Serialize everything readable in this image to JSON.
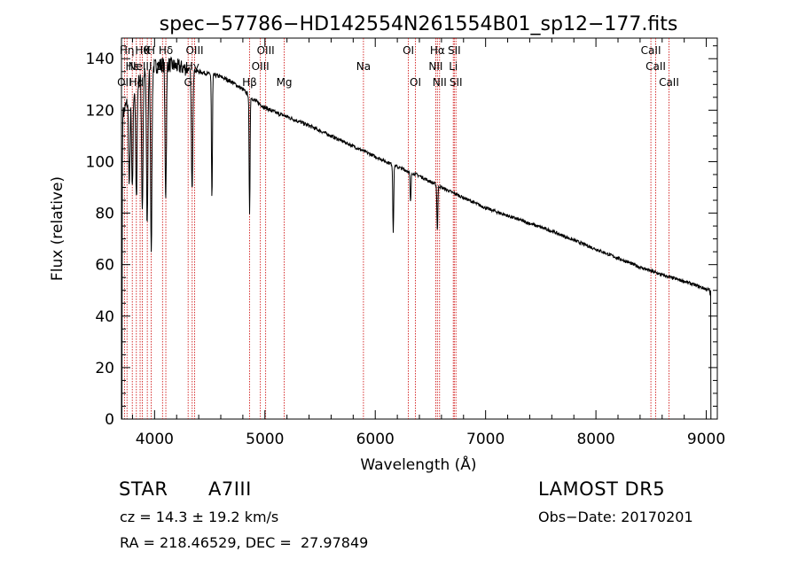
{
  "chart_data": {
    "type": "line",
    "title": "spec−57786−HD142554N261554B01_sp12−177.fits",
    "xlabel": "Wavelength (Å)",
    "ylabel": "Flux (relative)",
    "xlim": [
      3700,
      9100
    ],
    "ylim": [
      0,
      148
    ],
    "xticks": [
      4000,
      5000,
      6000,
      7000,
      8000,
      9000
    ],
    "yticks": [
      0,
      20,
      40,
      60,
      80,
      100,
      120,
      140
    ],
    "grid": false,
    "line_color": "#000000",
    "marker_color": "#cc0000",
    "series": [
      {
        "continuum": [
          [
            3710,
            118
          ],
          [
            3760,
            124
          ],
          [
            3800,
            128
          ],
          [
            3850,
            131
          ],
          [
            3900,
            134
          ],
          [
            3950,
            136
          ],
          [
            4000,
            137
          ],
          [
            4100,
            138
          ],
          [
            4200,
            137
          ],
          [
            4300,
            136
          ],
          [
            4400,
            135
          ],
          [
            4500,
            134
          ],
          [
            4600,
            133
          ],
          [
            4700,
            131
          ],
          [
            4800,
            128
          ],
          [
            4900,
            124
          ],
          [
            5000,
            121
          ],
          [
            5100,
            119
          ],
          [
            5200,
            117.5
          ],
          [
            5400,
            114
          ],
          [
            5600,
            110
          ],
          [
            5800,
            106
          ],
          [
            6000,
            102
          ],
          [
            6200,
            98
          ],
          [
            6400,
            94.5
          ],
          [
            6600,
            90
          ],
          [
            6800,
            86
          ],
          [
            7000,
            82
          ],
          [
            7200,
            79
          ],
          [
            7400,
            76
          ],
          [
            7600,
            73
          ],
          [
            7800,
            69.5
          ],
          [
            8000,
            66
          ],
          [
            8200,
            62.5
          ],
          [
            8400,
            59
          ],
          [
            8600,
            56
          ],
          [
            8800,
            53.5
          ],
          [
            9000,
            50.5
          ],
          [
            9040,
            50
          ]
        ],
        "absorption_lines": [
          [
            3771,
            90
          ],
          [
            3798,
            88
          ],
          [
            3835,
            85
          ],
          [
            3889,
            82
          ],
          [
            3933,
            75
          ],
          [
            3970,
            67
          ],
          [
            4101,
            87
          ],
          [
            4340,
            89
          ],
          [
            4861,
            80
          ],
          [
            4520,
            85
          ],
          [
            6163,
            73
          ],
          [
            6320,
            84
          ],
          [
            6563,
            73
          ]
        ]
      }
    ],
    "line_markers": [
      {
        "wl": 3727,
        "label": "OII",
        "row": 2
      },
      {
        "wl": 3750,
        "label": "Hη",
        "row": 0
      },
      {
        "wl": 3798,
        "label": "Hε",
        "row": 1
      },
      {
        "wl": 3835,
        "label": "Hd",
        "row": 2
      },
      {
        "wl": 3869,
        "label": "NeIII",
        "row": 1
      },
      {
        "wl": 3889,
        "label": "Hθ",
        "row": 0
      },
      {
        "wl": 3934,
        "label": "K",
        "row": 0
      },
      {
        "wl": 3969,
        "label": "H",
        "row": 0
      },
      {
        "wl": 4072,
        "label": "SII",
        "row": 1
      },
      {
        "wl": 4102,
        "label": "Hδ",
        "row": 0
      },
      {
        "wl": 4304,
        "label": "G",
        "row": 2
      },
      {
        "wl": 4341,
        "label": "Hγ",
        "row": 1
      },
      {
        "wl": 4363,
        "label": "OIII",
        "row": 0
      },
      {
        "wl": 4861,
        "label": "Hβ",
        "row": 2
      },
      {
        "wl": 4959,
        "label": "OIII",
        "row": 1
      },
      {
        "wl": 5007,
        "label": "OIII",
        "row": 0
      },
      {
        "wl": 5175,
        "label": "Mg",
        "row": 2
      },
      {
        "wl": 5893,
        "label": "Na",
        "row": 1
      },
      {
        "wl": 6300,
        "label": "OI",
        "row": 0
      },
      {
        "wl": 6364,
        "label": "OI",
        "row": 2
      },
      {
        "wl": 6548,
        "label": "NII",
        "row": 1
      },
      {
        "wl": 6563,
        "label": "Hα",
        "row": 0
      },
      {
        "wl": 6583,
        "label": "NII",
        "row": 2
      },
      {
        "wl": 6707,
        "label": "Li",
        "row": 1
      },
      {
        "wl": 6716,
        "label": "SII",
        "row": 0
      },
      {
        "wl": 6731,
        "label": "SII",
        "row": 2
      },
      {
        "wl": 8498,
        "label": "CaII",
        "row": 0
      },
      {
        "wl": 8542,
        "label": "CaII",
        "row": 1
      },
      {
        "wl": 8662,
        "label": "CaII",
        "row": 2
      }
    ]
  },
  "info": {
    "class_label": "STAR",
    "subclass": "A7III",
    "survey": "LAMOST DR5",
    "cz": "cz = 14.3 ± 19.2 km/s",
    "obs_date": "Obs−Date: 20170201",
    "radec": "RA = 218.46529, DEC =  27.97849"
  }
}
